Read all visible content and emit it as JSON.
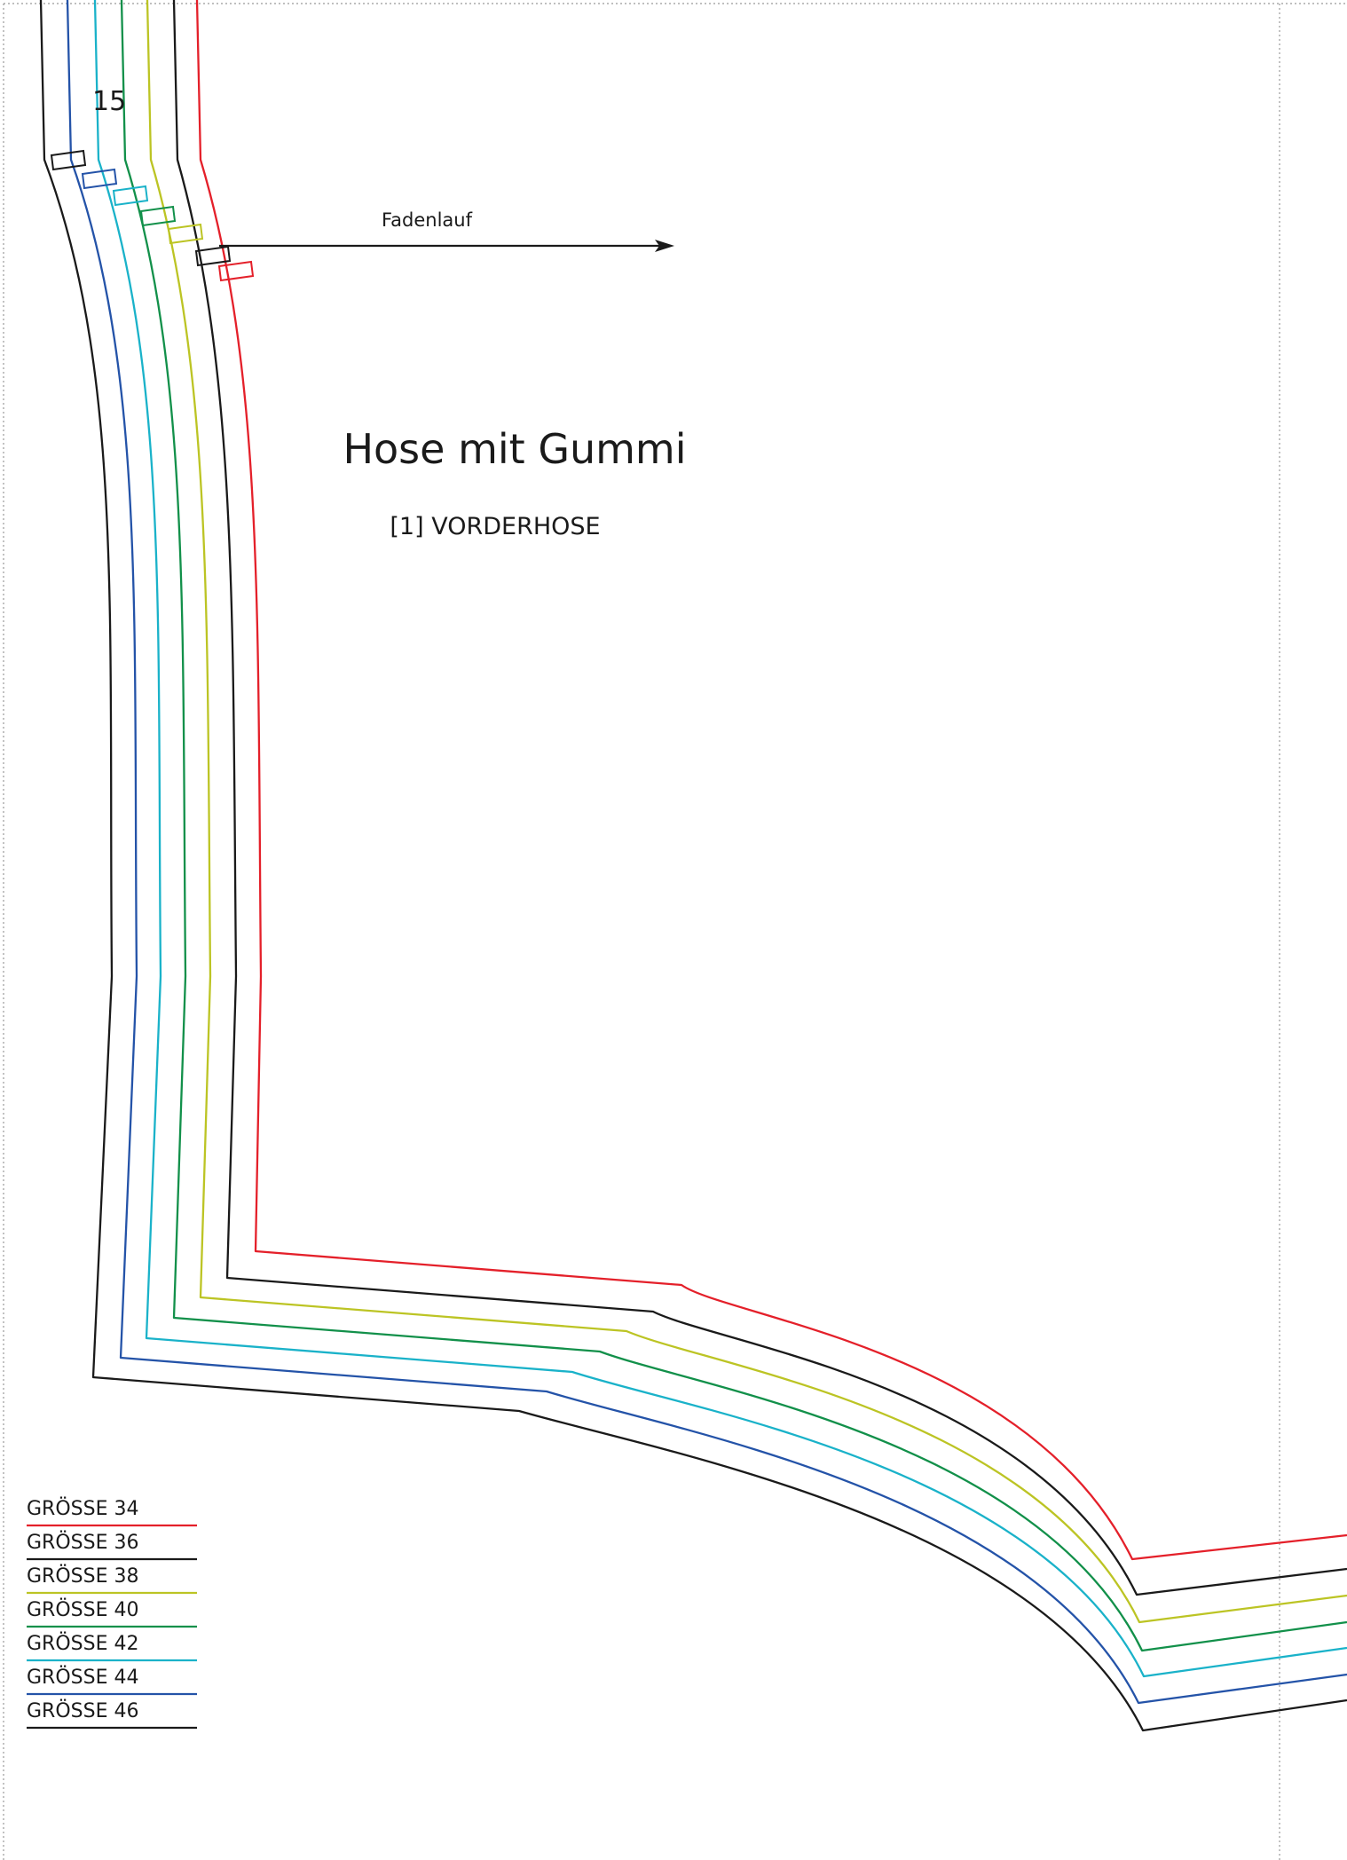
{
  "page_number": "15",
  "grain_label": "Fadenlauf",
  "title": "Hose mit Gummi",
  "piece_label": "[1]  VORDERHOSE",
  "sizes": [
    {
      "label": "GRÖSSE 34",
      "color": "#e4202a"
    },
    {
      "label": "GRÖSSE 36",
      "color": "#1a1a1a"
    },
    {
      "label": "GRÖSSE 38",
      "color": "#bcc424"
    },
    {
      "label": "GRÖSSE 40",
      "color": "#12904a"
    },
    {
      "label": "GRÖSSE 42",
      "color": "#1ab2c9"
    },
    {
      "label": "GRÖSSE 44",
      "color": "#2453a8"
    },
    {
      "label": "GRÖSSE 46",
      "color": "#1a1a1a"
    }
  ],
  "border_style": "dotted",
  "border_color": "#999999"
}
